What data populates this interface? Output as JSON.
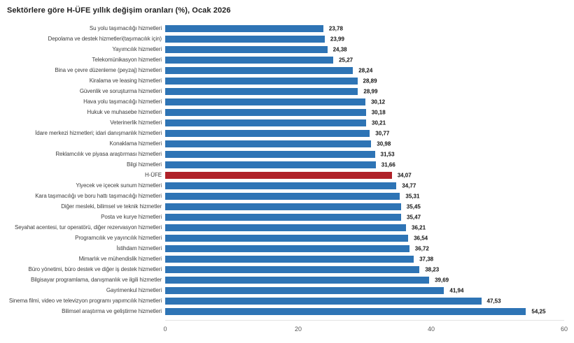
{
  "title": "Sektörlere göre H-ÜFE yıllık değişim oranları (%), Ocak 2026",
  "chart_data": {
    "type": "bar",
    "orientation": "horizontal",
    "title": "Sektörlere göre H-ÜFE yıllık değişim oranları (%), Ocak 2026",
    "xlabel": "",
    "ylabel": "",
    "xlim": [
      0,
      60
    ],
    "x_ticks": [
      "0",
      "20",
      "40",
      "60"
    ],
    "grid": false,
    "legend": "none",
    "bar_color": "#2e74b5",
    "highlight_color": "#b02128",
    "highlight_category": "H-ÜFE",
    "categories": [
      "Su yolu taşımacılığı hizmetleri",
      "Depolama ve destek hizmetleri(taşımacılık için)",
      "Yayımcılık hizmetleri",
      "Telekomünikasyon hizmetleri",
      "Bina ve çevre düzenleme (peyzaj) hizmetleri",
      "Kiralama ve leasing hizmetleri",
      "Güvenlik ve soruşturma hizmetleri",
      "Hava yolu taşımacılığı hizmetleri",
      "Hukuk ve muhasebe hizmetleri",
      "Veterinerlik hizmetleri",
      "İdare merkezi hizmetleri; idari danışmanlık hizmetleri",
      "Konaklama hizmetleri",
      "Reklamcılık ve piyasa araştırması hizmetleri",
      "Bilgi hizmetleri",
      "H-ÜFE",
      "Yiyecek ve içecek sunum hizmetleri",
      "Kara taşımacılığı ve boru hattı taşımacılığı hizmetleri",
      "Diğer mesleki, bilimsel ve teknik hizmetler",
      "Posta ve kurye hizmetleri",
      "Seyahat acentesi, tur operatörü, diğer rezervasyon hizmetleri",
      "Programcılık ve yayıncılık hizmetleri",
      "İstihdam hizmetleri",
      "Mimarlık ve mühendislik hizmetleri",
      "Büro yönetimi, büro destek ve diğer iş destek hizmetleri",
      "Bilgisayar programlama, danışmanlık ve ilgili hizmetler",
      "Gayrimenkul hizmetleri",
      "Sinema filmi, video ve televizyon programı yapımcılık hizmetleri",
      "Bilimsel araştırma ve geliştirme hizmetleri"
    ],
    "values": [
      23.78,
      23.99,
      24.38,
      25.27,
      28.24,
      28.89,
      28.99,
      30.12,
      30.18,
      30.21,
      30.77,
      30.98,
      31.53,
      31.66,
      34.07,
      34.77,
      35.31,
      35.45,
      35.47,
      36.21,
      36.54,
      36.72,
      37.38,
      38.23,
      39.69,
      41.94,
      47.53,
      54.25
    ],
    "value_labels": [
      "23,78",
      "23,99",
      "24,38",
      "25,27",
      "28,24",
      "28,89",
      "28,99",
      "30,12",
      "30,18",
      "30,21",
      "30,77",
      "30,98",
      "31,53",
      "31,66",
      "34,07",
      "34,77",
      "35,31",
      "35,45",
      "35,47",
      "36,21",
      "36,54",
      "36,72",
      "37,38",
      "38,23",
      "39,69",
      "41,94",
      "47,53",
      "54,25"
    ]
  }
}
